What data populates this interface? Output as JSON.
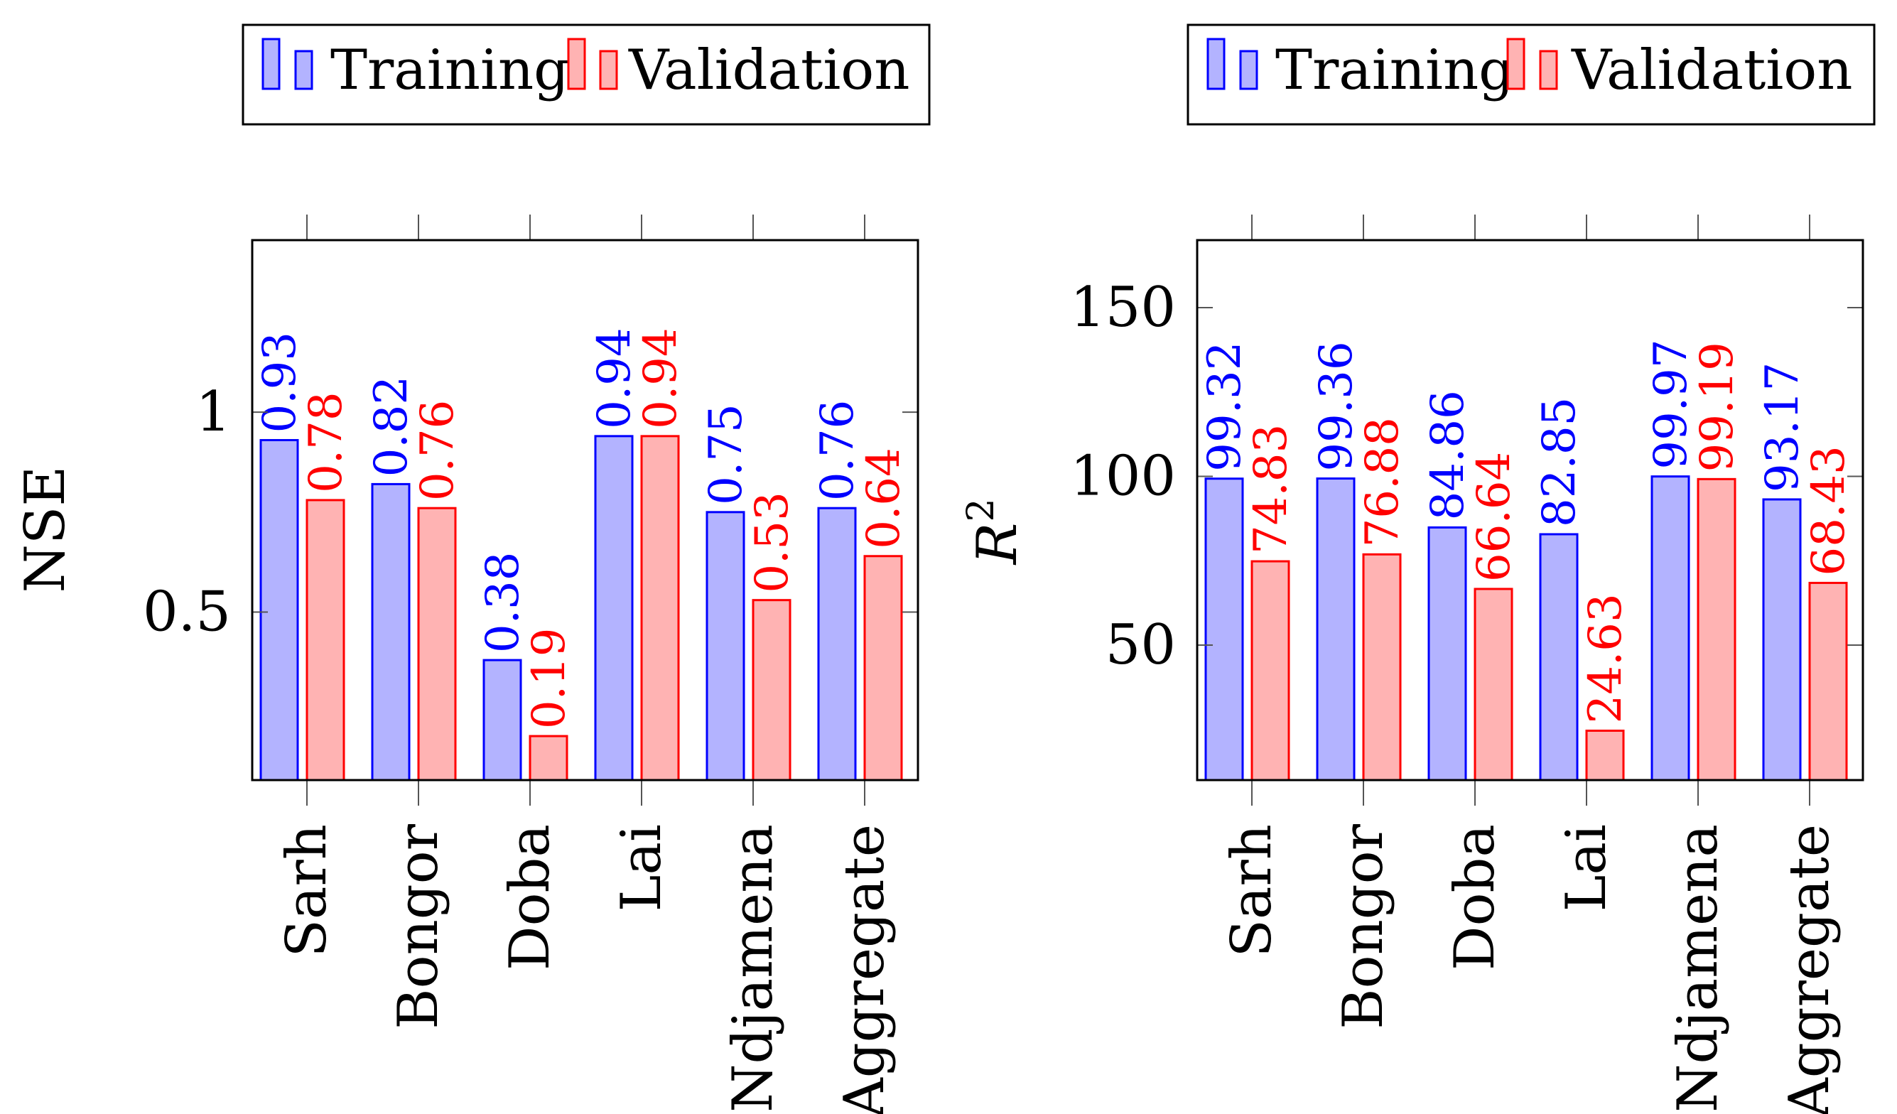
{
  "colors": {
    "training_fill": "#b3b3ff",
    "training_stroke": "#0000ff",
    "training_label": "#0000ff",
    "validation_fill": "#ffb3b3",
    "validation_stroke": "#ff0000",
    "validation_label": "#ff0000",
    "axis": "#000000"
  },
  "chart_data": [
    {
      "type": "bar",
      "title": "",
      "xlabel": "",
      "ylabel": "NSE",
      "categories": [
        "Sarh",
        "Bongor",
        "Doba",
        "Lai",
        "Ndjamena",
        "Aggregate"
      ],
      "series": [
        {
          "name": "Training",
          "values": [
            0.93,
            0.82,
            0.38,
            0.94,
            0.75,
            0.76
          ],
          "labels": [
            "0.93",
            "0.82",
            "0.38",
            "0.94",
            "0.75",
            "0.76"
          ]
        },
        {
          "name": "Validation",
          "values": [
            0.78,
            0.76,
            0.19,
            0.94,
            0.53,
            0.64
          ],
          "labels": [
            "0.78",
            "0.76",
            "0.19",
            "0.94",
            "0.53",
            "0.64"
          ]
        }
      ],
      "ylim": [
        0.08,
        1.43
      ],
      "yticks": [
        0.5,
        1
      ],
      "ytick_labels": [
        "0.5",
        "1"
      ],
      "legend": {
        "position": "top",
        "entries": [
          "Training",
          "Validation"
        ]
      },
      "grid": false
    },
    {
      "type": "bar",
      "title": "",
      "xlabel": "",
      "ylabel": "R2",
      "ylabel_main": "R",
      "ylabel_sup": "2",
      "categories": [
        "Sarh",
        "Bongor",
        "Doba",
        "Lai",
        "Ndjamena",
        "Aggregate"
      ],
      "series": [
        {
          "name": "Training",
          "values": [
            99.32,
            99.36,
            84.86,
            82.85,
            99.97,
            93.17
          ],
          "labels": [
            "99.32",
            "99.36",
            "84.86",
            "82.85",
            "99.97",
            "93.17"
          ]
        },
        {
          "name": "Validation",
          "values": [
            74.83,
            76.88,
            66.64,
            24.63,
            99.19,
            68.43
          ],
          "labels": [
            "74.83",
            "76.88",
            "66.64",
            "24.63",
            "99.19",
            "68.43"
          ]
        }
      ],
      "ylim": [
        10,
        170
      ],
      "yticks": [
        50,
        100,
        150
      ],
      "ytick_labels": [
        "50",
        "100",
        "150"
      ],
      "legend": {
        "position": "top",
        "entries": [
          "Training",
          "Validation"
        ]
      },
      "grid": false
    }
  ]
}
